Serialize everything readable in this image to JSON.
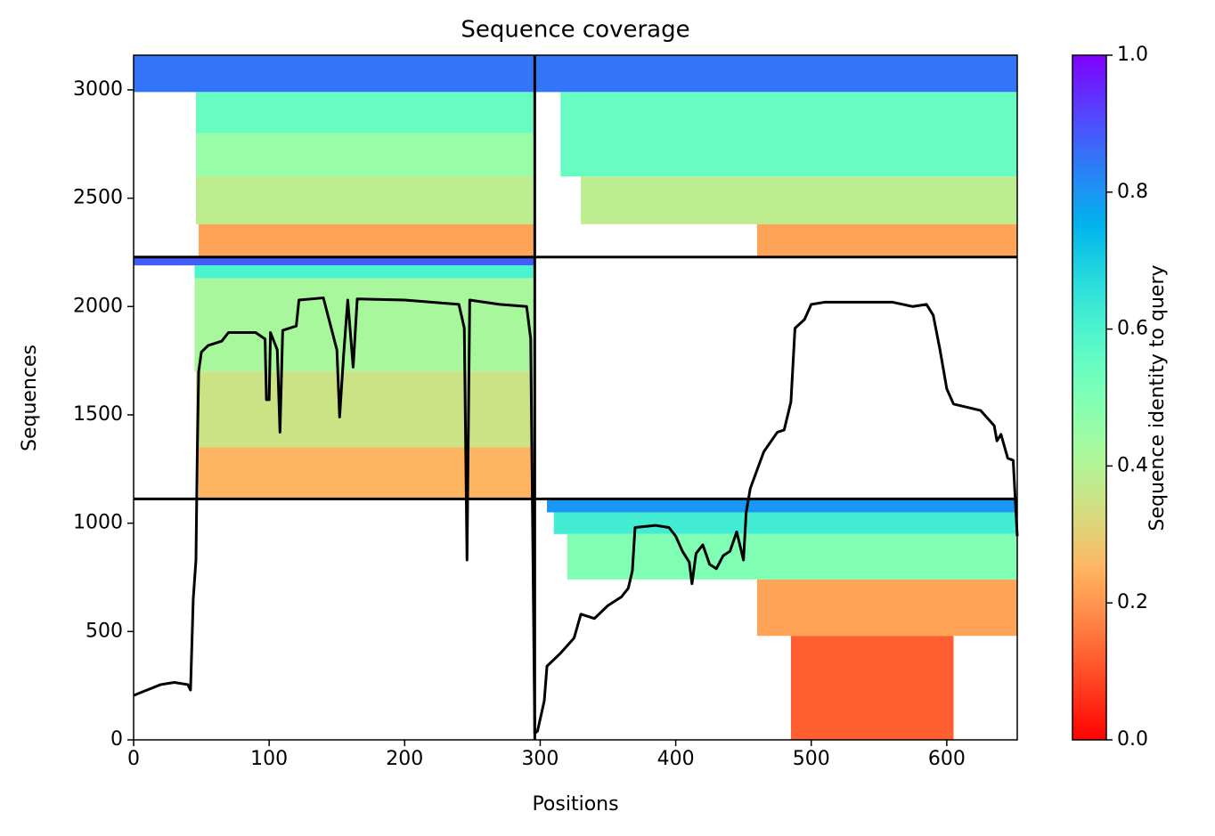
{
  "chart_data": {
    "type": "coverage",
    "title": "Sequence coverage",
    "xlabel": "Positions",
    "ylabel": "Sequences",
    "xlim": [
      0,
      652
    ],
    "ylim": [
      0,
      3160
    ],
    "xticks": [
      0,
      100,
      200,
      300,
      400,
      500,
      600
    ],
    "yticks": [
      0,
      500,
      1000,
      1500,
      2000,
      2500,
      3000
    ],
    "colormap": "rainbow_r",
    "colorbar": {
      "label": "Sequence identity to query",
      "lim": [
        0,
        1
      ],
      "ticks": [
        {
          "value": 0,
          "label": "0.0"
        },
        {
          "value": 0.2,
          "label": "0.2"
        },
        {
          "value": 0.4,
          "label": "0.4"
        },
        {
          "value": 0.6,
          "label": "0.6"
        },
        {
          "value": 0.8,
          "label": "0.8"
        },
        {
          "value": 1,
          "label": "1.0"
        }
      ]
    },
    "boundaries": {
      "x": [
        296
      ],
      "y": [
        1112,
        2228
      ]
    },
    "blocks": [
      {
        "x0": 0,
        "x1": 296,
        "y0": 2990,
        "y1": 3160,
        "identity": 0.85
      },
      {
        "x0": 46,
        "x1": 296,
        "y0": 2800,
        "y1": 2990,
        "identity": 0.55
      },
      {
        "x0": 46,
        "x1": 296,
        "y0": 2600,
        "y1": 2800,
        "identity": 0.45
      },
      {
        "x0": 46,
        "x1": 296,
        "y0": 2380,
        "y1": 2600,
        "identity": 0.38
      },
      {
        "x0": 48,
        "x1": 296,
        "y0": 2228,
        "y1": 2380,
        "identity": 0.22
      },
      {
        "x0": 296,
        "x1": 652,
        "y0": 2990,
        "y1": 3160,
        "identity": 0.85
      },
      {
        "x0": 315,
        "x1": 652,
        "y0": 2600,
        "y1": 2990,
        "identity": 0.55
      },
      {
        "x0": 330,
        "x1": 652,
        "y0": 2380,
        "y1": 2600,
        "identity": 0.38
      },
      {
        "x0": 460,
        "x1": 652,
        "y0": 2228,
        "y1": 2380,
        "identity": 0.22
      },
      {
        "x0": 0,
        "x1": 296,
        "y0": 2190,
        "y1": 2228,
        "identity": 0.88
      },
      {
        "x0": 45,
        "x1": 296,
        "y0": 2130,
        "y1": 2190,
        "identity": 0.6
      },
      {
        "x0": 45,
        "x1": 296,
        "y0": 1700,
        "y1": 2130,
        "identity": 0.42
      },
      {
        "x0": 46,
        "x1": 296,
        "y0": 1350,
        "y1": 1700,
        "identity": 0.35
      },
      {
        "x0": 48,
        "x1": 296,
        "y0": 1112,
        "y1": 1350,
        "identity": 0.25
      },
      {
        "x0": 305,
        "x1": 652,
        "y0": 1050,
        "y1": 1112,
        "identity": 0.8
      },
      {
        "x0": 310,
        "x1": 652,
        "y0": 950,
        "y1": 1050,
        "identity": 0.62
      },
      {
        "x0": 320,
        "x1": 652,
        "y0": 740,
        "y1": 950,
        "identity": 0.5
      },
      {
        "x0": 460,
        "x1": 652,
        "y0": 480,
        "y1": 740,
        "identity": 0.22
      },
      {
        "x0": 485,
        "x1": 605,
        "y0": 0,
        "y1": 480,
        "identity": 0.12
      }
    ],
    "coverage": {
      "x": [
        0,
        10,
        20,
        30,
        40,
        42,
        44,
        46,
        47,
        48,
        50,
        55,
        65,
        70,
        90,
        97,
        98,
        100,
        101,
        106,
        108,
        110,
        120,
        122,
        140,
        150,
        152,
        155,
        158,
        162,
        165,
        200,
        240,
        244,
        246,
        248,
        270,
        290,
        293,
        296,
        298,
        303,
        305,
        315,
        325,
        330,
        340,
        350,
        360,
        365,
        368,
        370,
        385,
        395,
        400,
        405,
        410,
        412,
        415,
        420,
        425,
        430,
        435,
        440,
        445,
        450,
        452,
        455,
        465,
        475,
        480,
        485,
        488,
        495,
        500,
        510,
        560,
        575,
        585,
        590,
        595,
        600,
        605,
        625,
        635,
        637,
        640,
        645,
        649,
        652
      ],
      "y": [
        205,
        230,
        255,
        265,
        255,
        230,
        650,
        830,
        1330,
        1700,
        1790,
        1820,
        1840,
        1880,
        1880,
        1850,
        1570,
        1570,
        1880,
        1800,
        1420,
        1890,
        1910,
        2030,
        2040,
        1800,
        1490,
        1780,
        2030,
        1720,
        2035,
        2030,
        2010,
        1900,
        830,
        2030,
        2010,
        2000,
        1850,
        30,
        40,
        180,
        340,
        400,
        470,
        580,
        560,
        620,
        660,
        700,
        780,
        980,
        990,
        980,
        940,
        870,
        820,
        720,
        860,
        900,
        810,
        790,
        850,
        870,
        960,
        830,
        1050,
        1160,
        1330,
        1420,
        1430,
        1560,
        1900,
        1940,
        2010,
        2020,
        2020,
        2000,
        2010,
        1960,
        1800,
        1620,
        1550,
        1520,
        1450,
        1380,
        1410,
        1300,
        1290,
        940
      ]
    }
  }
}
